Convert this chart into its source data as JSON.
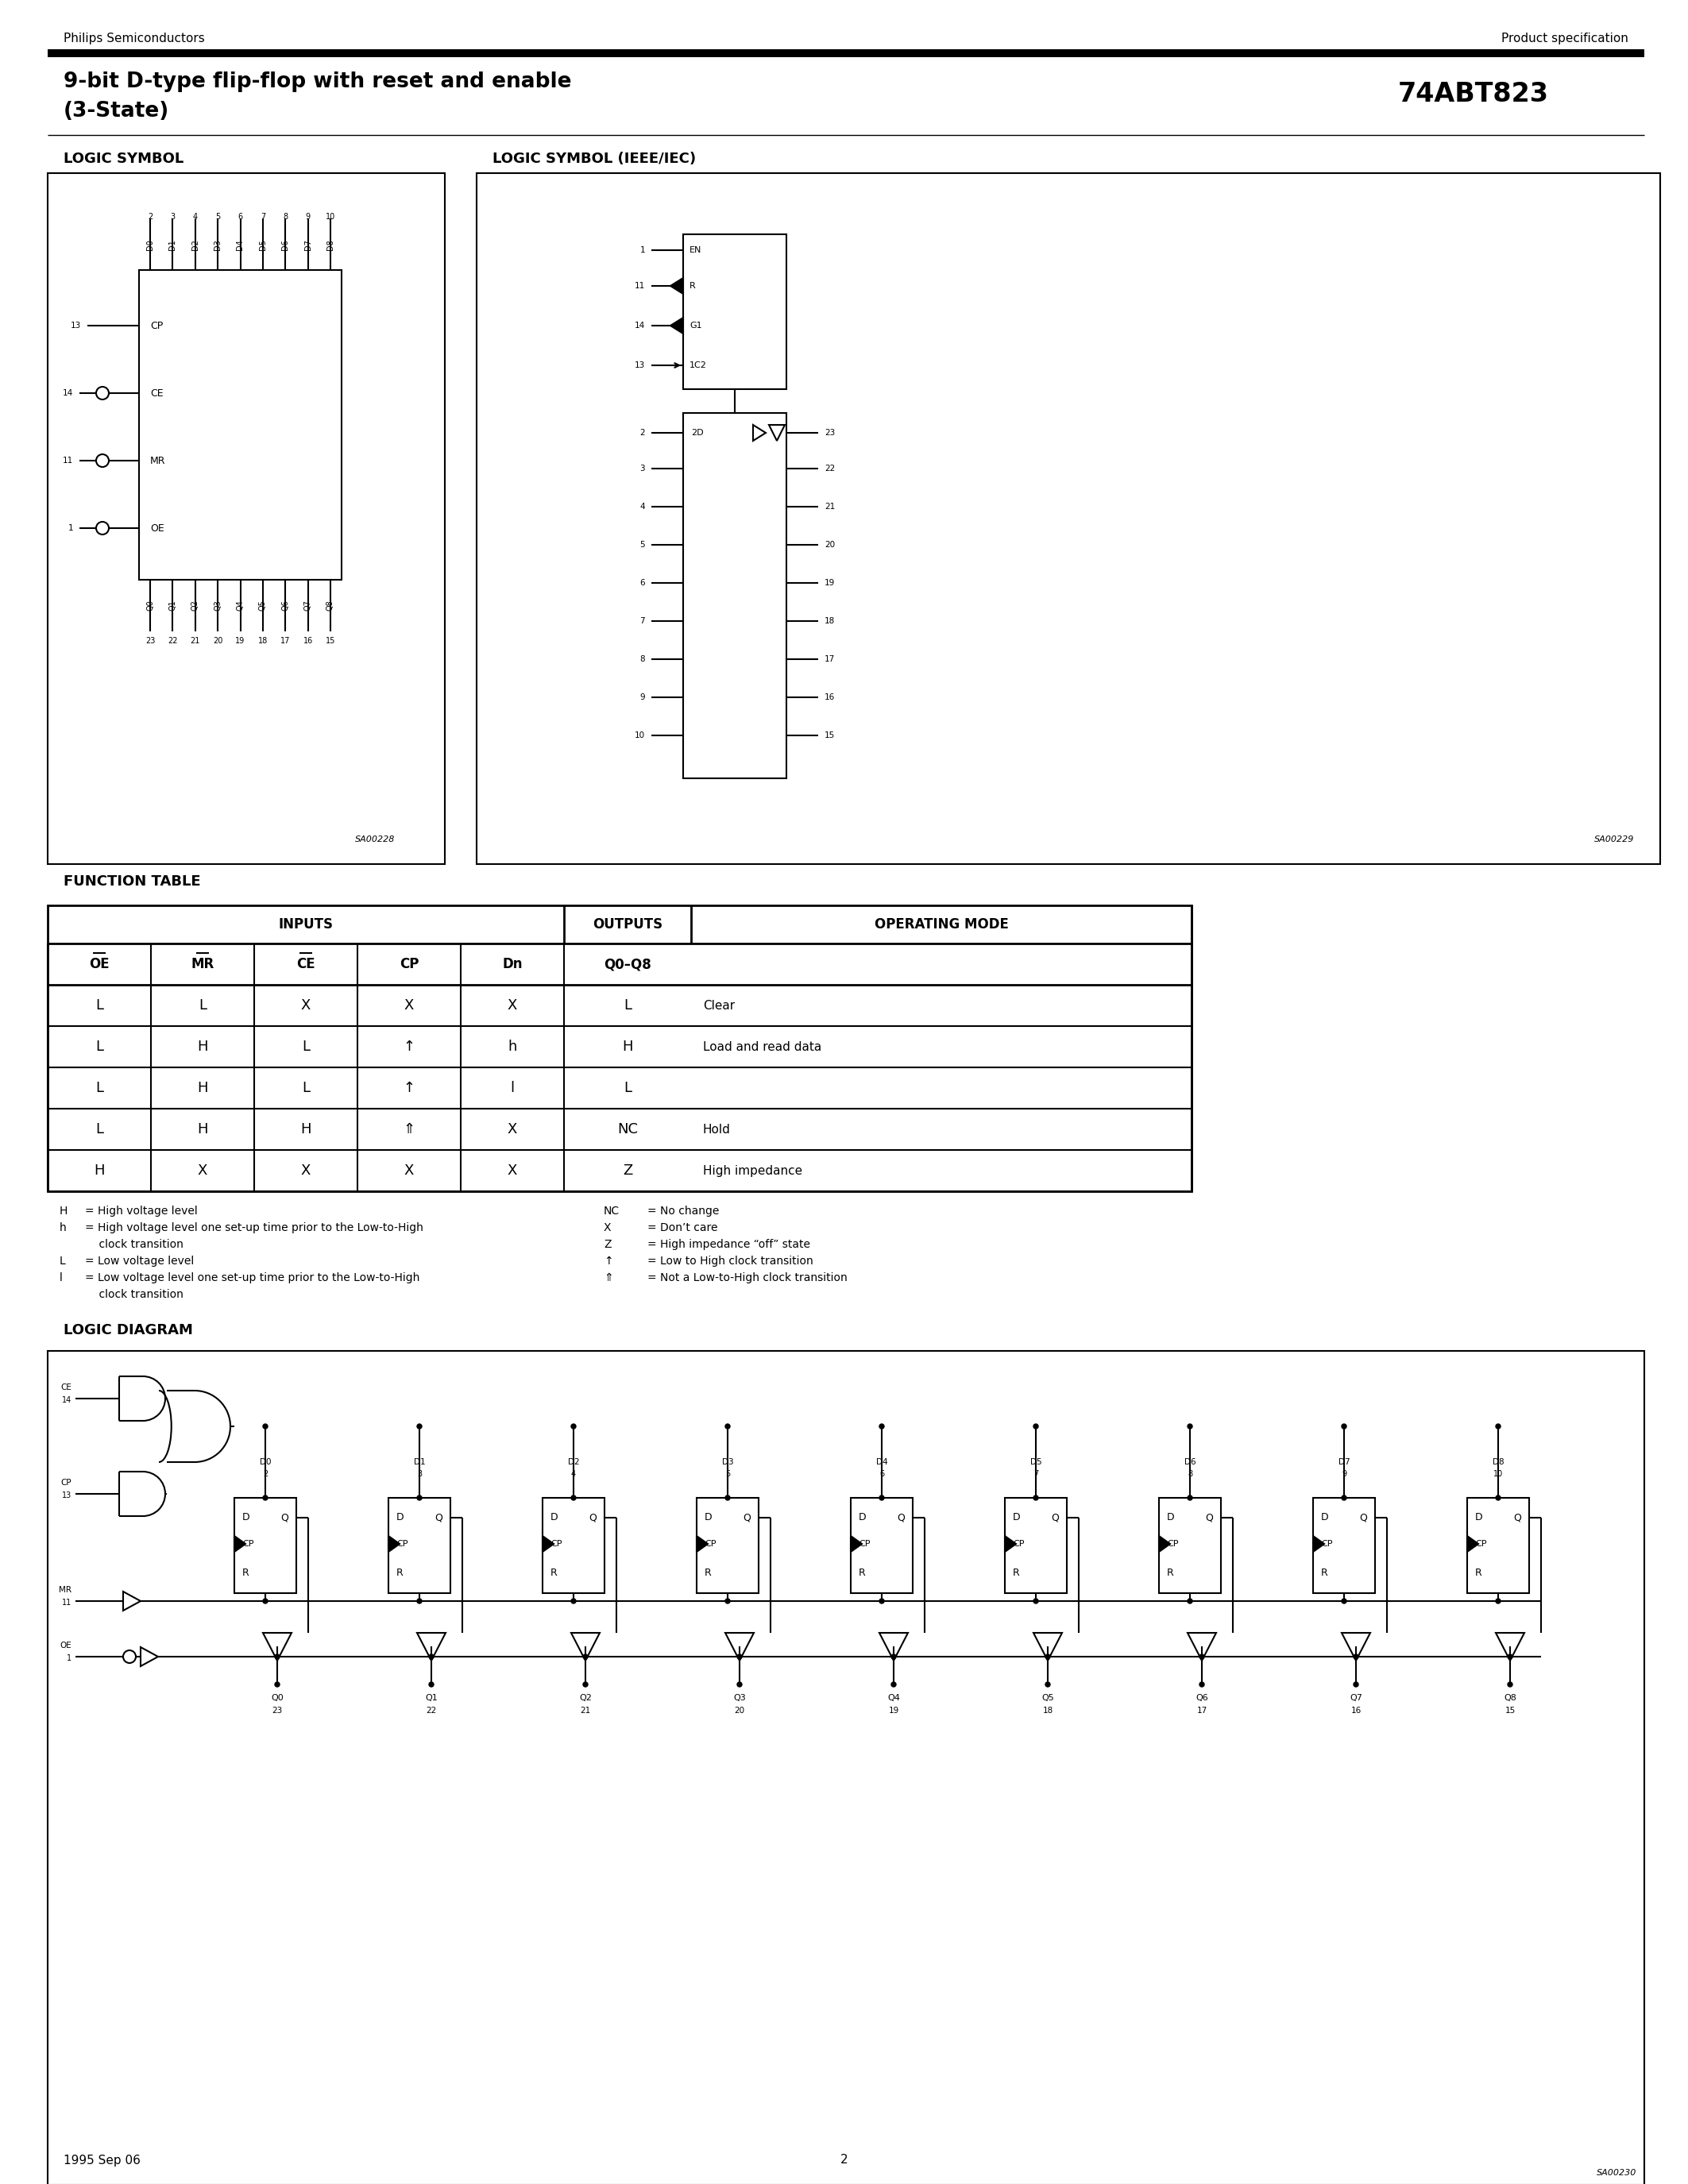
{
  "title_line1": "9-bit D-type flip-flop with reset and enable",
  "title_line2": "(3-State)",
  "part_number": "74ABT823",
  "company": "Philips Semiconductors",
  "doc_type": "Product specification",
  "page_num": "2",
  "date": "1995 Sep 06",
  "bg_color": "#ffffff",
  "ft_rows": [
    [
      "L",
      "L",
      "X",
      "X",
      "X",
      "L",
      "Clear"
    ],
    [
      "L",
      "H",
      "L",
      "↑",
      "h",
      "H",
      "Load and read data"
    ],
    [
      "L",
      "H",
      "L",
      "↑",
      "l",
      "L",
      ""
    ],
    [
      "L",
      "H",
      "H",
      "⇑",
      "X",
      "NC",
      "Hold"
    ],
    [
      "H",
      "X",
      "X",
      "X",
      "X",
      "Z",
      "High impedance"
    ]
  ],
  "legend_left": [
    [
      "H",
      "= High voltage level"
    ],
    [
      "h",
      "= High voltage level one set-up time prior to the Low-to-High"
    ],
    [
      "",
      "    clock transition"
    ],
    [
      "L",
      "= Low voltage level"
    ],
    [
      "l",
      "= Low voltage level one set-up time prior to the Low-to-High"
    ],
    [
      "",
      "    clock transition"
    ]
  ],
  "legend_right": [
    [
      "NC",
      "= No change"
    ],
    [
      "X",
      "= Don’t care"
    ],
    [
      "Z",
      "= High impedance “off” state"
    ],
    [
      "↑",
      "= Low to High clock transition"
    ],
    [
      "⇑",
      "= Not a Low-to-High clock transition"
    ],
    [
      "",
      ""
    ]
  ]
}
